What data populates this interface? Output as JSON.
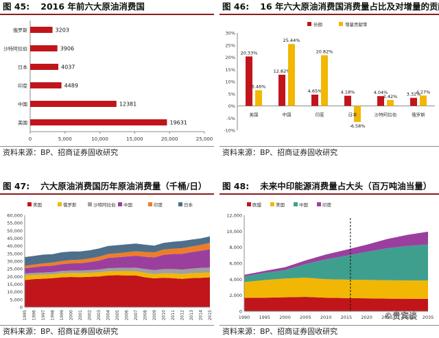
{
  "panels": {
    "p45": {
      "num": "图 45:",
      "title": "2016 年前六大原油消费国",
      "source": "资料来源：BP、招商证券固收研究"
    },
    "p46": {
      "num": "图 46:",
      "title": "16 年六大原油消费国消费量占比及对增量的贡献",
      "source": "资料来源：BP、招商证券固收研究"
    },
    "p47": {
      "num": "图 47:",
      "title": "六大原油消费国历年原油消费量（千桶/日）",
      "source": "资料来源：BP、招商证券固收研究"
    },
    "p48": {
      "num": "图 48:",
      "title": "未来中印能源消费量占大头（百万吨油当量）",
      "source": "资料来源：BP、招商证券固收研究"
    }
  },
  "watermark": "©贵宾谈",
  "colors": {
    "red": "#c0161b",
    "yellow": "#f2b705",
    "purple": "#9b3f9f",
    "orange": "#ee7d2a",
    "gray": "#a0a0a0",
    "teal": "#3f9f8f",
    "slate": "#4e6f8a"
  },
  "chart_data": [
    {
      "id": "fig45",
      "type": "bar",
      "orientation": "horizontal",
      "categories": [
        "俄罗斯",
        "沙特阿拉伯",
        "日本",
        "印度",
        "中国",
        "美国"
      ],
      "values": [
        3203,
        3906,
        4037,
        4489,
        12381,
        19631
      ],
      "value_labels": [
        "3203",
        "3906",
        "4037",
        "4489",
        "12381",
        "19631"
      ],
      "xlim": [
        0,
        25000
      ],
      "xticks": [
        0,
        5000,
        10000,
        15000,
        20000,
        25000
      ],
      "xtick_labels": [
        "0",
        "5,000",
        "10,000",
        "15,000",
        "20,000",
        "25,000"
      ],
      "color": "#c0161b"
    },
    {
      "id": "fig46",
      "type": "bar",
      "categories": [
        "美国",
        "中国",
        "印度",
        "日本",
        "沙特阿拉伯",
        "俄罗斯"
      ],
      "series": [
        {
          "name": "份额",
          "values": [
            20.33,
            12.82,
            4.65,
            4.18,
            4.04,
            3.32
          ],
          "labels": [
            "20.33%",
            "12.82%",
            "4.65%",
            "4.18%",
            "4.04%",
            "3.32%"
          ],
          "color": "#c0161b"
        },
        {
          "name": "增量贡献率",
          "values": [
            6.46,
            25.44,
            20.82,
            -6.58,
            2.42,
            4.27
          ],
          "labels": [
            "6.46%",
            "25.44%",
            "20.82%",
            "-6.58%",
            "2.42%",
            "4.27%"
          ],
          "color": "#f2b705"
        }
      ],
      "ylim": [
        -10,
        30
      ],
      "yticks": [
        -10,
        -5,
        0,
        5,
        10,
        15,
        20,
        25,
        30
      ],
      "ytick_labels": [
        "-10%",
        "-5%",
        "0%",
        "5%",
        "10%",
        "15%",
        "20%",
        "25%",
        "30%"
      ]
    },
    {
      "id": "fig47",
      "type": "area",
      "stacked": true,
      "x": [
        "1995",
        "1996",
        "1997",
        "1998",
        "1999",
        "2000",
        "2001",
        "2002",
        "2003",
        "2004",
        "2005",
        "2006",
        "2007",
        "2008",
        "2009",
        "2010",
        "2011",
        "2012",
        "2013",
        "2014",
        "2015"
      ],
      "series": [
        {
          "name": "美国",
          "color": "#c0161b",
          "values": [
            17700,
            18300,
            18600,
            18900,
            19500,
            19700,
            19600,
            19800,
            20000,
            20700,
            20800,
            20700,
            20700,
            19500,
            18800,
            19200,
            18900,
            18500,
            19000,
            19100,
            19500
          ]
        },
        {
          "name": "俄罗斯",
          "color": "#f2b705",
          "values": [
            2900,
            2700,
            2600,
            2500,
            2600,
            2600,
            2600,
            2600,
            2700,
            2700,
            2700,
            2800,
            2800,
            2900,
            2800,
            2900,
            3100,
            3100,
            3100,
            3300,
            3100
          ]
        },
        {
          "name": "沙特阿拉伯",
          "color": "#a0a0a0",
          "values": [
            1400,
            1400,
            1400,
            1500,
            1500,
            1600,
            1700,
            1800,
            1900,
            2000,
            2100,
            2200,
            2300,
            2500,
            2600,
            2800,
            2900,
            3000,
            3100,
            3200,
            3300
          ]
        },
        {
          "name": "中国",
          "color": "#9b3f9f",
          "values": [
            3400,
            3700,
            4200,
            4200,
            4500,
            4700,
            4800,
            5200,
            5800,
            6700,
            7000,
            7400,
            7800,
            8000,
            8300,
            9300,
            9800,
            10200,
            10700,
            11200,
            11900
          ]
        },
        {
          "name": "印度",
          "color": "#ee7d2a",
          "values": [
            1600,
            1700,
            1800,
            2000,
            2100,
            2200,
            2300,
            2400,
            2500,
            2600,
            2600,
            2700,
            2900,
            3100,
            3300,
            3400,
            3500,
            3700,
            3700,
            3800,
            4200
          ]
        },
        {
          "name": "日本",
          "color": "#4e6f8a",
          "values": [
            5700,
            5700,
            5700,
            5500,
            5600,
            5500,
            5400,
            5300,
            5400,
            5300,
            5300,
            5200,
            5000,
            4800,
            4400,
            4400,
            4500,
            4700,
            4500,
            4300,
            4200
          ]
        }
      ],
      "ylim": [
        0,
        60000
      ],
      "yticks": [
        0,
        5000,
        10000,
        15000,
        20000,
        25000,
        30000,
        35000,
        40000,
        45000,
        50000,
        55000,
        60000
      ],
      "ytick_labels": [
        "0",
        "5,000",
        "10,000",
        "15,000",
        "20,000",
        "25,000",
        "30,000",
        "35,000",
        "40,000",
        "45,000",
        "50,000",
        "55,000",
        "60,000"
      ]
    },
    {
      "id": "fig48",
      "type": "area",
      "stacked": true,
      "x": [
        1990,
        1995,
        2000,
        2005,
        2010,
        2015,
        2020,
        2025,
        2030,
        2035
      ],
      "series": [
        {
          "name": "欧盟",
          "color": "#c0161b",
          "values": [
            1700,
            1700,
            1750,
            1800,
            1700,
            1650,
            1620,
            1580,
            1560,
            1550
          ]
        },
        {
          "name": "美国",
          "color": "#f2b705",
          "values": [
            1950,
            2200,
            2350,
            2400,
            2300,
            2300,
            2300,
            2300,
            2300,
            2300
          ]
        },
        {
          "name": "中国",
          "color": "#3f9f8f",
          "values": [
            700,
            900,
            1050,
            1700,
            2500,
            3000,
            3500,
            4000,
            4300,
            4500
          ]
        },
        {
          "name": "印度",
          "color": "#9b3f9f",
          "values": [
            200,
            250,
            350,
            450,
            600,
            750,
            900,
            1150,
            1400,
            1600
          ]
        }
      ],
      "xticks": [
        1990,
        1995,
        2000,
        2005,
        2010,
        2015,
        2020,
        2025,
        2030,
        2035
      ],
      "xtick_labels": [
        "1990",
        "1995",
        "2000",
        "2005",
        "2010",
        "2015",
        "2020",
        "2025",
        "2030",
        "2035"
      ],
      "xlim": [
        1990,
        2035
      ],
      "ylim": [
        0,
        12000
      ],
      "yticks": [
        0,
        2000,
        4000,
        6000,
        8000,
        10000,
        12000
      ],
      "ytick_labels": [
        "0",
        "2,000",
        "4,000",
        "6,000",
        "8,000",
        "10,000",
        "12,000"
      ],
      "marker_x": 2016
    }
  ]
}
